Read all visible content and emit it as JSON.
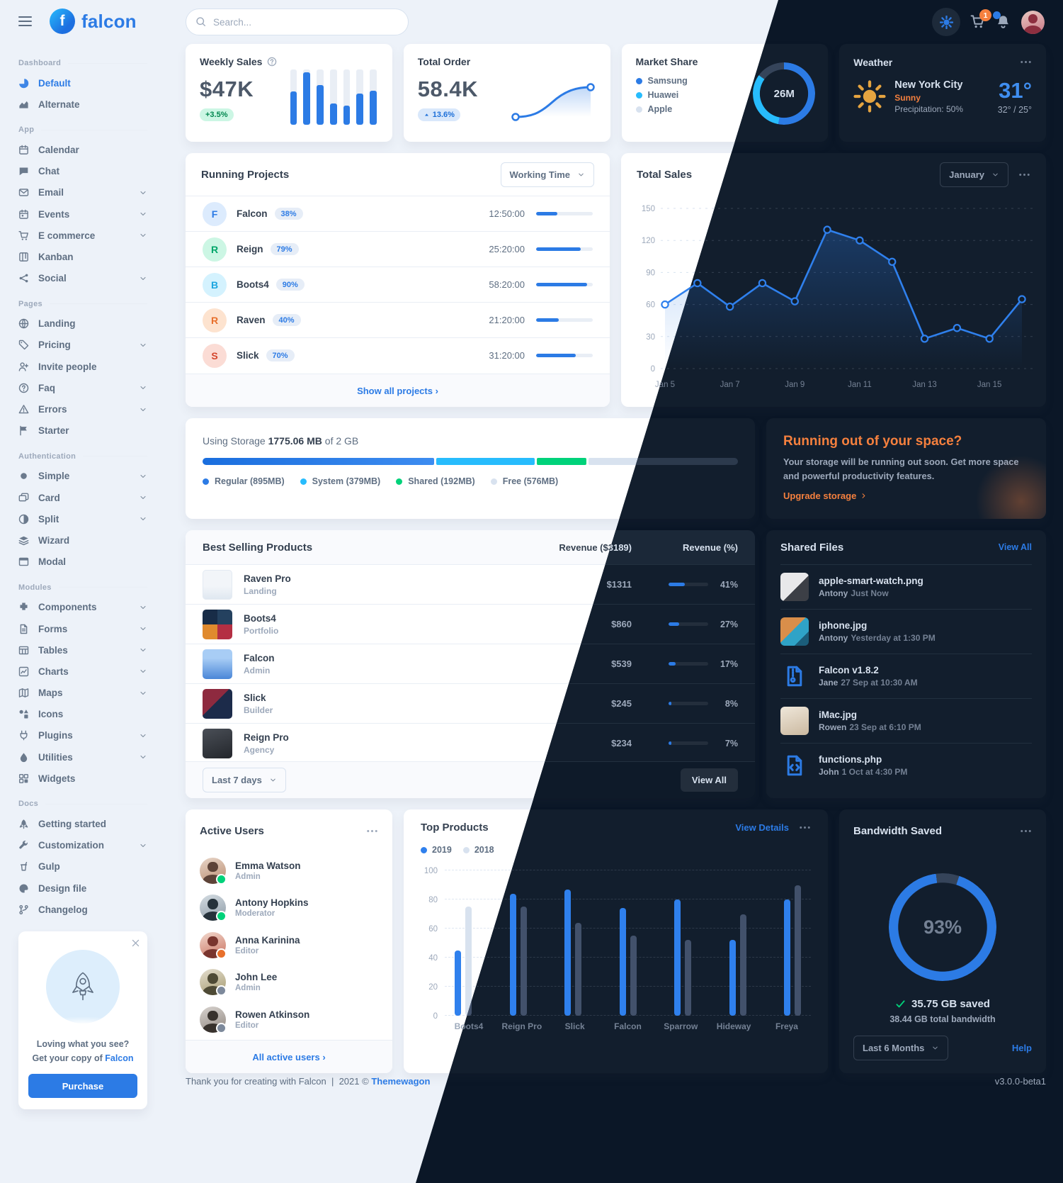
{
  "brand": {
    "name": "falcon",
    "monogram": "f"
  },
  "navbar": {
    "search_placeholder": "Search...",
    "cart_badge": "1"
  },
  "sidebar": {
    "sections": [
      {
        "title": "Dashboard",
        "items": [
          {
            "label": "Default",
            "icon": "pie-chart",
            "active": true
          },
          {
            "label": "Alternate",
            "icon": "area-chart"
          }
        ]
      },
      {
        "title": "App",
        "items": [
          {
            "label": "Calendar",
            "icon": "calendar"
          },
          {
            "label": "Chat",
            "icon": "chat-bubble"
          },
          {
            "label": "Email",
            "icon": "envelope",
            "chevron": true
          },
          {
            "label": "Events",
            "icon": "calendar-day",
            "chevron": true
          },
          {
            "label": "E commerce",
            "icon": "shopping-cart",
            "chevron": true
          },
          {
            "label": "Kanban",
            "icon": "kanban-board"
          },
          {
            "label": "Social",
            "icon": "share-nodes",
            "chevron": true
          }
        ]
      },
      {
        "title": "Pages",
        "items": [
          {
            "label": "Landing",
            "icon": "globe"
          },
          {
            "label": "Pricing",
            "icon": "price-tag",
            "chevron": true
          },
          {
            "label": "Invite people",
            "icon": "user-plus"
          },
          {
            "label": "Faq",
            "icon": "question-circle",
            "chevron": true
          },
          {
            "label": "Errors",
            "icon": "warning-triangle",
            "chevron": true
          },
          {
            "label": "Starter",
            "icon": "flag"
          }
        ]
      },
      {
        "title": "Authentication",
        "items": [
          {
            "label": "Simple",
            "icon": "circle",
            "chevron": true
          },
          {
            "label": "Card",
            "icon": "id-card",
            "chevron": true
          },
          {
            "label": "Split",
            "icon": "half-circle",
            "chevron": true
          },
          {
            "label": "Wizard",
            "icon": "layers"
          },
          {
            "label": "Modal",
            "icon": "window-modal"
          }
        ]
      },
      {
        "title": "Modules",
        "items": [
          {
            "label": "Components",
            "icon": "puzzle-piece",
            "chevron": true
          },
          {
            "label": "Forms",
            "icon": "file-lines",
            "chevron": true
          },
          {
            "label": "Tables",
            "icon": "table",
            "chevron": true
          },
          {
            "label": "Charts",
            "icon": "chart-line",
            "chevron": true
          },
          {
            "label": "Maps",
            "icon": "map",
            "chevron": true
          },
          {
            "label": "Icons",
            "icon": "shapes"
          },
          {
            "label": "Plugins",
            "icon": "plug",
            "chevron": true
          },
          {
            "label": "Utilities",
            "icon": "fire-drop",
            "chevron": true
          },
          {
            "label": "Widgets",
            "icon": "widgets-grid"
          }
        ]
      },
      {
        "title": "Docs",
        "items": [
          {
            "label": "Getting started",
            "icon": "rocket"
          },
          {
            "label": "Customization",
            "icon": "wrench",
            "chevron": true
          },
          {
            "label": "Gulp",
            "icon": "gulp-cup"
          },
          {
            "label": "Design file",
            "icon": "palette"
          },
          {
            "label": "Changelog",
            "icon": "code-branch"
          }
        ]
      }
    ],
    "promo": {
      "line1": "Loving what you see?",
      "line2": "Get your copy of",
      "brand_link": "Falcon",
      "button": "Purchase"
    }
  },
  "weekly_sales": {
    "title": "Weekly Sales",
    "value": "$47K",
    "badge": "+3.5%",
    "spark": [
      60,
      95,
      72,
      38,
      34,
      56,
      62
    ]
  },
  "total_order": {
    "title": "Total Order",
    "value": "58.4K",
    "badge": "13.6%"
  },
  "market_share": {
    "title": "Market Share",
    "total": "26M",
    "items": [
      {
        "label": "Samsung",
        "pct": 53,
        "color": "#2c7be5"
      },
      {
        "label": "Huawei",
        "pct": 32,
        "color": "#27bcfd"
      },
      {
        "label": "Apple",
        "pct": 15,
        "color": "gray"
      }
    ]
  },
  "weather": {
    "title": "Weather",
    "city": "New York City",
    "condition": "Sunny",
    "precipitation": "Precipitation: 50%",
    "temp": "31°",
    "range": "32° / 25°"
  },
  "running_projects": {
    "title": "Running Projects",
    "select": "Working Time",
    "show_all": "Show all projects",
    "rows": [
      {
        "letter": "F",
        "name": "Falcon",
        "badge": "38%",
        "pct": 38,
        "time": "12:50:00"
      },
      {
        "letter": "R",
        "name": "Reign",
        "badge": "79%",
        "pct": 79,
        "time": "25:20:00"
      },
      {
        "letter": "B",
        "name": "Boots4",
        "badge": "90%",
        "pct": 90,
        "time": "58:20:00"
      },
      {
        "letter": "R",
        "name": "Raven",
        "badge": "40%",
        "pct": 40,
        "time": "21:20:00"
      },
      {
        "letter": "S",
        "name": "Slick",
        "badge": "70%",
        "pct": 70,
        "time": "31:20:00"
      }
    ]
  },
  "chart_data": [
    {
      "id": "total_sales",
      "type": "line",
      "title": "Total Sales",
      "select": "January",
      "x": [
        "Jan 5",
        "Jan 6",
        "Jan 7",
        "Jan 8",
        "Jan 9",
        "Jan 10",
        "Jan 11",
        "Jan 12",
        "Jan 13",
        "Jan 14",
        "Jan 15",
        "Jan 16"
      ],
      "x_labels": [
        "Jan 5",
        "Jan 7",
        "Jan 9",
        "Jan 11",
        "Jan 13",
        "Jan 15"
      ],
      "values": [
        60,
        80,
        58,
        80,
        63,
        130,
        120,
        100,
        28,
        38,
        28,
        65
      ],
      "y_ticks": [
        0,
        30,
        60,
        90,
        120,
        150
      ],
      "ylim": [
        0,
        150
      ],
      "grid": "dashed horizontal",
      "legend_position": "none"
    },
    {
      "id": "top_products",
      "type": "bar",
      "title": "Top Products",
      "view_details": "View Details",
      "categories": [
        "Boots4",
        "Reign Pro",
        "Slick",
        "Falcon",
        "Sparrow",
        "Hideway",
        "Freya"
      ],
      "series": [
        {
          "name": "2019",
          "values": [
            45,
            84,
            87,
            74,
            80,
            52,
            80
          ]
        },
        {
          "name": "2018",
          "values": [
            75,
            75,
            64,
            55,
            52,
            70,
            90
          ]
        }
      ],
      "y_ticks": [
        0,
        20,
        40,
        60,
        80,
        100
      ],
      "ylim": [
        0,
        100
      ],
      "grid": "dashed horizontal",
      "legend_position": "top-left"
    }
  ],
  "storage": {
    "prefix": "Using Storage",
    "used": "1775.06 MB",
    "suffix": "of 2 GB",
    "total_mb": 2048,
    "segments": [
      {
        "key": "regular",
        "label": "Regular (895MB)",
        "mb": 895
      },
      {
        "key": "system",
        "label": "System (379MB)",
        "mb": 379
      },
      {
        "key": "shared",
        "label": "Shared (192MB)",
        "mb": 192
      },
      {
        "key": "free",
        "label": "Free (576MB)",
        "mb": 576
      }
    ]
  },
  "upgrade": {
    "title": "Running out of your space?",
    "body": "Your storage will be running out soon. Get more space and powerful productivity features.",
    "cta": "Upgrade storage"
  },
  "best_selling": {
    "title": "Best Selling Products",
    "col_revenue": "Revenue ($3189)",
    "col_pct": "Revenue (%)",
    "select": "Last 7 days",
    "view_all": "View All",
    "rows": [
      {
        "name": "Raven Pro",
        "category": "Landing",
        "revenue": "$1311",
        "pct": 41,
        "pct_label": "41%"
      },
      {
        "name": "Boots4",
        "category": "Portfolio",
        "revenue": "$860",
        "pct": 27,
        "pct_label": "27%"
      },
      {
        "name": "Falcon",
        "category": "Admin",
        "revenue": "$539",
        "pct": 17,
        "pct_label": "17%"
      },
      {
        "name": "Slick",
        "category": "Builder",
        "revenue": "$245",
        "pct": 8,
        "pct_label": "8%"
      },
      {
        "name": "Reign Pro",
        "category": "Agency",
        "revenue": "$234",
        "pct": 7,
        "pct_label": "7%"
      }
    ]
  },
  "shared_files": {
    "title": "Shared Files",
    "view_all": "View All",
    "rows": [
      {
        "name": "apple-smart-watch.png",
        "by": "Antony",
        "time": "Just Now",
        "kind": "image"
      },
      {
        "name": "iphone.jpg",
        "by": "Antony",
        "time": "Yesterday at 1:30 PM",
        "kind": "image"
      },
      {
        "name": "Falcon v1.8.2",
        "by": "Jane",
        "time": "27 Sep at 10:30 AM",
        "kind": "archive"
      },
      {
        "name": "iMac.jpg",
        "by": "Rowen",
        "time": "23 Sep at 6:10 PM",
        "kind": "image"
      },
      {
        "name": "functions.php",
        "by": "John",
        "time": "1 Oct at 4:30 PM",
        "kind": "code"
      }
    ]
  },
  "active_users": {
    "title": "Active Users",
    "all_link": "All active users",
    "rows": [
      {
        "name": "Emma Watson",
        "role": "Admin",
        "status": "green"
      },
      {
        "name": "Antony Hopkins",
        "role": "Moderator",
        "status": "green"
      },
      {
        "name": "Anna Karinina",
        "role": "Editor",
        "status": "orange"
      },
      {
        "name": "John Lee",
        "role": "Admin",
        "status": "gray"
      },
      {
        "name": "Rowen Atkinson",
        "role": "Editor",
        "status": "gray"
      }
    ]
  },
  "bandwidth": {
    "title": "Bandwidth Saved",
    "pct": 93,
    "pct_label": "93%",
    "saved": "35.75 GB saved",
    "total": "38.44 GB total bandwidth",
    "select": "Last 6 Months",
    "help": "Help"
  },
  "footer": {
    "thanks": "Thank you for creating with Falcon",
    "divider": "|",
    "year": "2021 ©",
    "brand": "Themewagon",
    "version": "v3.0.0-beta1"
  }
}
